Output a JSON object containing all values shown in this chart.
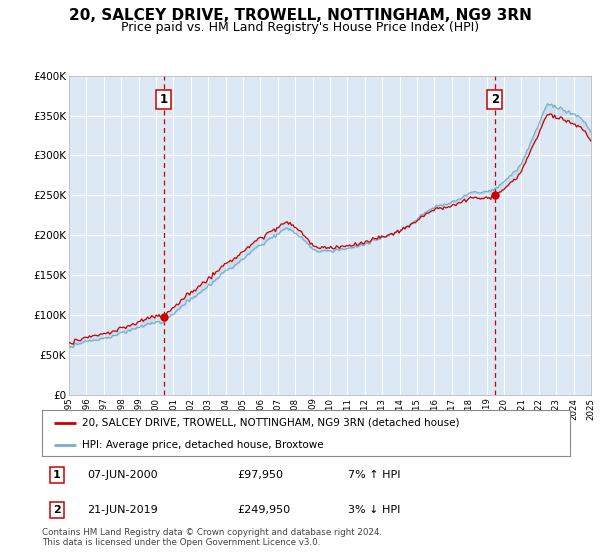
{
  "title": "20, SALCEY DRIVE, TROWELL, NOTTINGHAM, NG9 3RN",
  "subtitle": "Price paid vs. HM Land Registry's House Price Index (HPI)",
  "title_fontsize": 11,
  "subtitle_fontsize": 9,
  "x_start_year": 1995,
  "x_end_year": 2025,
  "y_min": 0,
  "y_max": 400000,
  "y_ticks": [
    0,
    50000,
    100000,
    150000,
    200000,
    250000,
    300000,
    350000,
    400000
  ],
  "y_tick_labels": [
    "£0",
    "£50K",
    "£100K",
    "£150K",
    "£200K",
    "£250K",
    "£300K",
    "£350K",
    "£400K"
  ],
  "sale1_year": 2000.44,
  "sale1_price": 97950,
  "sale2_year": 2019.47,
  "sale2_price": 249950,
  "red_line_color": "#cc0000",
  "blue_line_color": "#7aadcc",
  "bg_color": "#dce9f5",
  "grid_color": "#ffffff",
  "dashed_line_color": "#cc0000",
  "legend_label1": "20, SALCEY DRIVE, TROWELL, NOTTINGHAM, NG9 3RN (detached house)",
  "legend_label2": "HPI: Average price, detached house, Broxtowe",
  "table_row1_num": "1",
  "table_row1_date": "07-JUN-2000",
  "table_row1_price": "£97,950",
  "table_row1_hpi": "7% ↑ HPI",
  "table_row2_num": "2",
  "table_row2_date": "21-JUN-2019",
  "table_row2_price": "£249,950",
  "table_row2_hpi": "3% ↓ HPI",
  "footer": "Contains HM Land Registry data © Crown copyright and database right 2024.\nThis data is licensed under the Open Government Licence v3.0."
}
